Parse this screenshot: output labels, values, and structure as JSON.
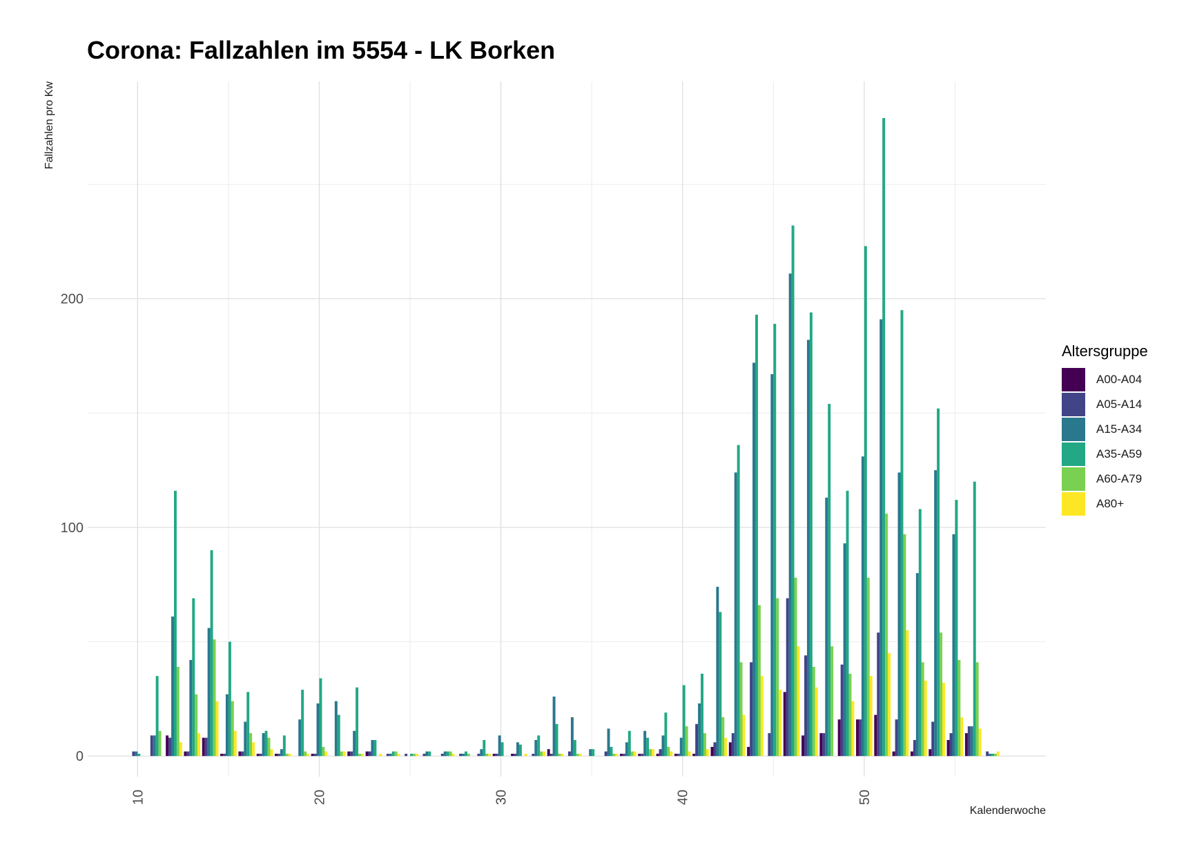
{
  "chart_data": {
    "type": "bar",
    "title": "Corona: Fallzahlen im 5554 - LK Borken",
    "xlabel": "Kalenderwoche",
    "ylabel": "Fallzahlen pro Kw",
    "xlim": [
      7.25,
      60
    ],
    "ylim": [
      -9,
      295
    ],
    "x_ticks": [
      10,
      20,
      30,
      40,
      50
    ],
    "y_ticks": [
      0,
      100,
      200
    ],
    "grid": true,
    "legend_title": "Altersgruppe",
    "legend_position": "right",
    "x": [
      10,
      11,
      12,
      13,
      14,
      15,
      16,
      17,
      18,
      19,
      20,
      21,
      22,
      23,
      24,
      25,
      26,
      27,
      28,
      29,
      30,
      31,
      32,
      33,
      34,
      35,
      36,
      37,
      38,
      39,
      40,
      41,
      42,
      43,
      44,
      45,
      46,
      47,
      48,
      49,
      50,
      51,
      52,
      53,
      54,
      55,
      56,
      57
    ],
    "series": [
      {
        "name": "A00-A04",
        "color": "#440154",
        "values": [
          0,
          0,
          9,
          2,
          8,
          1,
          2,
          1,
          1,
          0,
          1,
          0,
          2,
          2,
          0,
          0,
          0,
          0,
          0,
          0,
          1,
          1,
          0,
          3,
          0,
          0,
          0,
          1,
          1,
          1,
          1,
          1,
          4,
          6,
          4,
          0,
          28,
          9,
          10,
          16,
          16,
          18,
          2,
          2,
          3,
          7,
          10,
          0
        ]
      },
      {
        "name": "A05-A14",
        "color": "#414487",
        "values": [
          2,
          9,
          8,
          2,
          8,
          1,
          2,
          1,
          1,
          0,
          1,
          0,
          2,
          2,
          1,
          1,
          1,
          1,
          1,
          1,
          1,
          1,
          1,
          1,
          2,
          0,
          2,
          1,
          1,
          3,
          1,
          14,
          6,
          10,
          41,
          10,
          69,
          44,
          10,
          40,
          16,
          54,
          16,
          7,
          15,
          10,
          13,
          2
        ]
      },
      {
        "name": "A15-A34",
        "color": "#2a788e",
        "values": [
          2,
          9,
          61,
          42,
          56,
          27,
          15,
          10,
          3,
          16,
          23,
          24,
          11,
          7,
          1,
          0,
          2,
          2,
          1,
          3,
          9,
          6,
          7,
          26,
          17,
          3,
          12,
          6,
          11,
          9,
          8,
          23,
          74,
          124,
          172,
          167,
          211,
          182,
          113,
          93,
          131,
          191,
          124,
          80,
          125,
          97,
          13,
          1
        ]
      },
      {
        "name": "A35-A59",
        "color": "#22a884",
        "values": [
          1,
          35,
          116,
          69,
          90,
          50,
          28,
          11,
          9,
          29,
          34,
          18,
          30,
          7,
          2,
          1,
          2,
          2,
          2,
          7,
          6,
          5,
          9,
          14,
          7,
          3,
          4,
          11,
          8,
          19,
          31,
          36,
          63,
          136,
          193,
          189,
          232,
          194,
          154,
          116,
          223,
          279,
          195,
          108,
          152,
          112,
          120,
          1
        ]
      },
      {
        "name": "A60-A79",
        "color": "#7ad151",
        "values": [
          0,
          11,
          39,
          27,
          51,
          24,
          10,
          8,
          1,
          2,
          4,
          2,
          1,
          0,
          2,
          1,
          0,
          2,
          1,
          1,
          0,
          0,
          2,
          1,
          1,
          0,
          1,
          2,
          3,
          4,
          13,
          10,
          17,
          41,
          66,
          69,
          78,
          39,
          48,
          36,
          78,
          106,
          97,
          41,
          54,
          42,
          41,
          1
        ]
      },
      {
        "name": "A80+",
        "color": "#fde725",
        "values": [
          0,
          0,
          6,
          10,
          24,
          11,
          6,
          3,
          1,
          1,
          2,
          2,
          1,
          1,
          1,
          1,
          0,
          1,
          0,
          1,
          0,
          1,
          2,
          1,
          1,
          0,
          1,
          2,
          3,
          2,
          2,
          3,
          8,
          18,
          35,
          29,
          48,
          30,
          0,
          24,
          35,
          45,
          55,
          33,
          32,
          17,
          12,
          2
        ]
      }
    ]
  }
}
